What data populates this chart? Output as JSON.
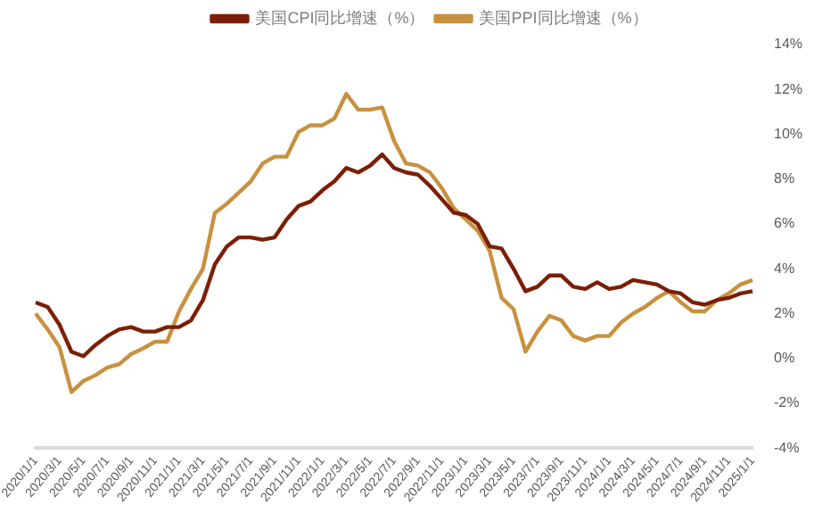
{
  "chart_data": {
    "type": "line",
    "categories": [
      "2020/1/1",
      null,
      "2020/3/1",
      null,
      "2020/5/1",
      null,
      "2020/7/1",
      null,
      "2020/9/1",
      null,
      "2020/11/1",
      null,
      "2021/1/1",
      null,
      "2021/3/1",
      null,
      "2021/5/1",
      null,
      "2021/7/1",
      null,
      "2021/9/1",
      null,
      "2021/11/1",
      null,
      "2022/1/1",
      null,
      "2022/3/1",
      null,
      "2022/5/1",
      null,
      "2022/7/1",
      null,
      "2022/9/1",
      null,
      "2022/11/1",
      null,
      "2023/1/1",
      null,
      "2023/3/1",
      null,
      "2023/5/1",
      null,
      "2023/7/1",
      null,
      "2023/9/1",
      null,
      "2023/11/1",
      null,
      "2024/1/1",
      null,
      "2024/3/1",
      null,
      "2024/5/1",
      null,
      "2024/7/1",
      null,
      "2024/9/1",
      null,
      "2024/11/1",
      null,
      "2025/1/1"
    ],
    "series": [
      {
        "name": "美国CPI同比增速（%）",
        "color": "#7b1f05",
        "values": [
          2.5,
          2.3,
          1.5,
          0.3,
          0.1,
          0.6,
          1.0,
          1.3,
          1.4,
          1.2,
          1.2,
          1.4,
          1.4,
          1.7,
          2.6,
          4.2,
          5.0,
          5.4,
          5.4,
          5.3,
          5.4,
          6.2,
          6.8,
          7.0,
          7.5,
          7.9,
          8.5,
          8.3,
          8.6,
          9.1,
          8.5,
          8.3,
          8.2,
          7.7,
          7.1,
          6.5,
          6.4,
          6.0,
          5.0,
          4.9,
          4.0,
          3.0,
          3.2,
          3.7,
          3.7,
          3.2,
          3.1,
          3.4,
          3.1,
          3.2,
          3.5,
          3.4,
          3.3,
          3.0,
          2.9,
          2.5,
          2.4,
          2.6,
          2.7,
          2.9,
          3.0
        ]
      },
      {
        "name": "美国PPI同比增速（%）",
        "color": "#c8913f",
        "values": [
          2.0,
          1.3,
          0.5,
          -1.5,
          -1.0,
          -0.75,
          -0.4,
          -0.25,
          0.2,
          0.45,
          0.75,
          0.75,
          2.1,
          3.1,
          4.0,
          6.5,
          6.9,
          7.4,
          7.9,
          8.7,
          9.0,
          9.0,
          10.1,
          10.4,
          10.4,
          10.7,
          11.8,
          11.1,
          11.1,
          11.2,
          9.7,
          8.7,
          8.6,
          8.3,
          7.6,
          6.7,
          6.2,
          5.7,
          4.8,
          2.7,
          2.2,
          0.3,
          1.2,
          1.9,
          1.7,
          1.0,
          0.8,
          1.0,
          1.0,
          1.6,
          2.0,
          2.3,
          2.7,
          3.0,
          2.5,
          2.1,
          2.1,
          2.6,
          2.9,
          3.3,
          3.5
        ]
      }
    ],
    "ylim": [
      -4,
      14
    ],
    "yticks": [
      {
        "value": -4,
        "label": "-4%"
      },
      {
        "value": -2,
        "label": "-2%"
      },
      {
        "value": 0,
        "label": "0%"
      },
      {
        "value": 2,
        "label": "2%"
      },
      {
        "value": 4,
        "label": "4%"
      },
      {
        "value": 6,
        "label": "6%"
      },
      {
        "value": 8,
        "label": "8%"
      },
      {
        "value": 10,
        "label": "10%"
      },
      {
        "value": 12,
        "label": "12%"
      },
      {
        "value": 14,
        "label": "14%"
      }
    ],
    "grid": false,
    "legend": "top",
    "marker": "none",
    "line_style": "solid"
  }
}
